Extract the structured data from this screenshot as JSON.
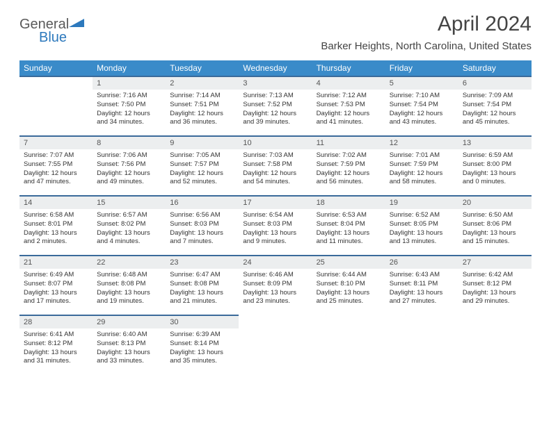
{
  "logo": {
    "part1": "General",
    "part2": "Blue"
  },
  "title": "April 2024",
  "location": "Barker Heights, North Carolina, United States",
  "header_bg": "#3a8bc9",
  "row_border": "#3a6a9a",
  "daynum_bg": "#eceeef",
  "weekdays": [
    "Sunday",
    "Monday",
    "Tuesday",
    "Wednesday",
    "Thursday",
    "Friday",
    "Saturday"
  ],
  "weeks": [
    [
      null,
      {
        "n": "1",
        "sr": "Sunrise: 7:16 AM",
        "ss": "Sunset: 7:50 PM",
        "d1": "Daylight: 12 hours",
        "d2": "and 34 minutes."
      },
      {
        "n": "2",
        "sr": "Sunrise: 7:14 AM",
        "ss": "Sunset: 7:51 PM",
        "d1": "Daylight: 12 hours",
        "d2": "and 36 minutes."
      },
      {
        "n": "3",
        "sr": "Sunrise: 7:13 AM",
        "ss": "Sunset: 7:52 PM",
        "d1": "Daylight: 12 hours",
        "d2": "and 39 minutes."
      },
      {
        "n": "4",
        "sr": "Sunrise: 7:12 AM",
        "ss": "Sunset: 7:53 PM",
        "d1": "Daylight: 12 hours",
        "d2": "and 41 minutes."
      },
      {
        "n": "5",
        "sr": "Sunrise: 7:10 AM",
        "ss": "Sunset: 7:54 PM",
        "d1": "Daylight: 12 hours",
        "d2": "and 43 minutes."
      },
      {
        "n": "6",
        "sr": "Sunrise: 7:09 AM",
        "ss": "Sunset: 7:54 PM",
        "d1": "Daylight: 12 hours",
        "d2": "and 45 minutes."
      }
    ],
    [
      {
        "n": "7",
        "sr": "Sunrise: 7:07 AM",
        "ss": "Sunset: 7:55 PM",
        "d1": "Daylight: 12 hours",
        "d2": "and 47 minutes."
      },
      {
        "n": "8",
        "sr": "Sunrise: 7:06 AM",
        "ss": "Sunset: 7:56 PM",
        "d1": "Daylight: 12 hours",
        "d2": "and 49 minutes."
      },
      {
        "n": "9",
        "sr": "Sunrise: 7:05 AM",
        "ss": "Sunset: 7:57 PM",
        "d1": "Daylight: 12 hours",
        "d2": "and 52 minutes."
      },
      {
        "n": "10",
        "sr": "Sunrise: 7:03 AM",
        "ss": "Sunset: 7:58 PM",
        "d1": "Daylight: 12 hours",
        "d2": "and 54 minutes."
      },
      {
        "n": "11",
        "sr": "Sunrise: 7:02 AM",
        "ss": "Sunset: 7:59 PM",
        "d1": "Daylight: 12 hours",
        "d2": "and 56 minutes."
      },
      {
        "n": "12",
        "sr": "Sunrise: 7:01 AM",
        "ss": "Sunset: 7:59 PM",
        "d1": "Daylight: 12 hours",
        "d2": "and 58 minutes."
      },
      {
        "n": "13",
        "sr": "Sunrise: 6:59 AM",
        "ss": "Sunset: 8:00 PM",
        "d1": "Daylight: 13 hours",
        "d2": "and 0 minutes."
      }
    ],
    [
      {
        "n": "14",
        "sr": "Sunrise: 6:58 AM",
        "ss": "Sunset: 8:01 PM",
        "d1": "Daylight: 13 hours",
        "d2": "and 2 minutes."
      },
      {
        "n": "15",
        "sr": "Sunrise: 6:57 AM",
        "ss": "Sunset: 8:02 PM",
        "d1": "Daylight: 13 hours",
        "d2": "and 4 minutes."
      },
      {
        "n": "16",
        "sr": "Sunrise: 6:56 AM",
        "ss": "Sunset: 8:03 PM",
        "d1": "Daylight: 13 hours",
        "d2": "and 7 minutes."
      },
      {
        "n": "17",
        "sr": "Sunrise: 6:54 AM",
        "ss": "Sunset: 8:03 PM",
        "d1": "Daylight: 13 hours",
        "d2": "and 9 minutes."
      },
      {
        "n": "18",
        "sr": "Sunrise: 6:53 AM",
        "ss": "Sunset: 8:04 PM",
        "d1": "Daylight: 13 hours",
        "d2": "and 11 minutes."
      },
      {
        "n": "19",
        "sr": "Sunrise: 6:52 AM",
        "ss": "Sunset: 8:05 PM",
        "d1": "Daylight: 13 hours",
        "d2": "and 13 minutes."
      },
      {
        "n": "20",
        "sr": "Sunrise: 6:50 AM",
        "ss": "Sunset: 8:06 PM",
        "d1": "Daylight: 13 hours",
        "d2": "and 15 minutes."
      }
    ],
    [
      {
        "n": "21",
        "sr": "Sunrise: 6:49 AM",
        "ss": "Sunset: 8:07 PM",
        "d1": "Daylight: 13 hours",
        "d2": "and 17 minutes."
      },
      {
        "n": "22",
        "sr": "Sunrise: 6:48 AM",
        "ss": "Sunset: 8:08 PM",
        "d1": "Daylight: 13 hours",
        "d2": "and 19 minutes."
      },
      {
        "n": "23",
        "sr": "Sunrise: 6:47 AM",
        "ss": "Sunset: 8:08 PM",
        "d1": "Daylight: 13 hours",
        "d2": "and 21 minutes."
      },
      {
        "n": "24",
        "sr": "Sunrise: 6:46 AM",
        "ss": "Sunset: 8:09 PM",
        "d1": "Daylight: 13 hours",
        "d2": "and 23 minutes."
      },
      {
        "n": "25",
        "sr": "Sunrise: 6:44 AM",
        "ss": "Sunset: 8:10 PM",
        "d1": "Daylight: 13 hours",
        "d2": "and 25 minutes."
      },
      {
        "n": "26",
        "sr": "Sunrise: 6:43 AM",
        "ss": "Sunset: 8:11 PM",
        "d1": "Daylight: 13 hours",
        "d2": "and 27 minutes."
      },
      {
        "n": "27",
        "sr": "Sunrise: 6:42 AM",
        "ss": "Sunset: 8:12 PM",
        "d1": "Daylight: 13 hours",
        "d2": "and 29 minutes."
      }
    ],
    [
      {
        "n": "28",
        "sr": "Sunrise: 6:41 AM",
        "ss": "Sunset: 8:12 PM",
        "d1": "Daylight: 13 hours",
        "d2": "and 31 minutes."
      },
      {
        "n": "29",
        "sr": "Sunrise: 6:40 AM",
        "ss": "Sunset: 8:13 PM",
        "d1": "Daylight: 13 hours",
        "d2": "and 33 minutes."
      },
      {
        "n": "30",
        "sr": "Sunrise: 6:39 AM",
        "ss": "Sunset: 8:14 PM",
        "d1": "Daylight: 13 hours",
        "d2": "and 35 minutes."
      },
      null,
      null,
      null,
      null
    ]
  ]
}
